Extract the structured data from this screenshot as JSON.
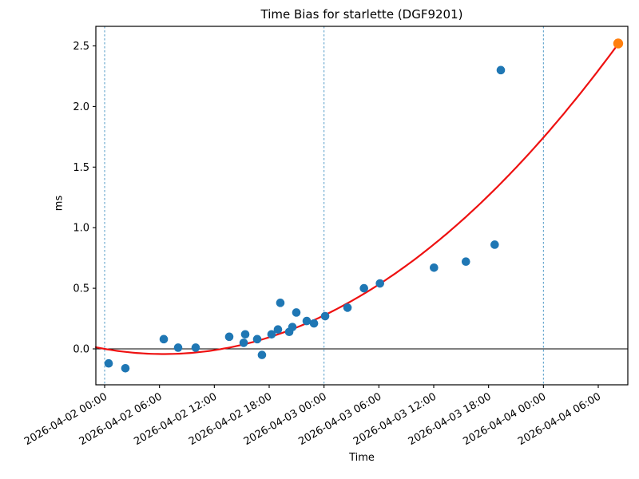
{
  "chart_data": {
    "type": "scatter",
    "title": "Time Bias for starlette (DGF9201)",
    "xlabel": "Time",
    "ylabel": "ms",
    "x_axis": {
      "epoch": "2026-04-02 00:00",
      "tick_hours": [
        0,
        6,
        12,
        18,
        24,
        30,
        36,
        42,
        48,
        54
      ],
      "tick_labels": [
        "2026-04-02 00:00",
        "2026-04-02 06:00",
        "2026-04-02 12:00",
        "2026-04-02 18:00",
        "2026-04-03 00:00",
        "2026-04-03 06:00",
        "2026-04-03 12:00",
        "2026-04-03 18:00",
        "2026-04-04 00:00",
        "2026-04-04 06:00"
      ],
      "range_hours": [
        -0.96,
        57.24
      ],
      "label_rotation_deg": 30
    },
    "y_axis": {
      "ticks": [
        "0.0",
        "0.5",
        "1.0",
        "1.5",
        "2.0",
        "2.5"
      ],
      "tick_values": [
        0.0,
        0.5,
        1.0,
        1.5,
        2.0,
        2.5
      ],
      "range": [
        -0.3,
        2.66
      ]
    },
    "grid": false,
    "legend": null,
    "series": [
      {
        "name": "time-bias-measurements",
        "marker": "circle",
        "color": "#1f77b4",
        "points": [
          {
            "time": "2026-04-02 00:26",
            "hours": 0.44,
            "ms": -0.12
          },
          {
            "time": "2026-04-02 02:16",
            "hours": 2.27,
            "ms": -0.16
          },
          {
            "time": "2026-04-02 06:28",
            "hours": 6.47,
            "ms": 0.08
          },
          {
            "time": "2026-04-02 08:02",
            "hours": 8.04,
            "ms": 0.01
          },
          {
            "time": "2026-04-02 09:58",
            "hours": 9.96,
            "ms": 0.01
          },
          {
            "time": "2026-04-02 13:38",
            "hours": 13.63,
            "ms": 0.1
          },
          {
            "time": "2026-04-02 15:13",
            "hours": 15.21,
            "ms": 0.05
          },
          {
            "time": "2026-04-02 15:23",
            "hours": 15.38,
            "ms": 0.12
          },
          {
            "time": "2026-04-02 16:41",
            "hours": 16.69,
            "ms": 0.08
          },
          {
            "time": "2026-04-02 17:13",
            "hours": 17.21,
            "ms": -0.05
          },
          {
            "time": "2026-04-02 18:16",
            "hours": 18.26,
            "ms": 0.12
          },
          {
            "time": "2026-04-02 18:58",
            "hours": 18.96,
            "ms": 0.16
          },
          {
            "time": "2026-04-02 19:13",
            "hours": 19.22,
            "ms": 0.38
          },
          {
            "time": "2026-04-02 20:11",
            "hours": 20.19,
            "ms": 0.14
          },
          {
            "time": "2026-04-02 20:32",
            "hours": 20.54,
            "ms": 0.18
          },
          {
            "time": "2026-04-02 20:58",
            "hours": 20.97,
            "ms": 0.3
          },
          {
            "time": "2026-04-02 22:07",
            "hours": 22.11,
            "ms": 0.23
          },
          {
            "time": "2026-04-02 22:54",
            "hours": 22.9,
            "ms": 0.21
          },
          {
            "time": "2026-04-03 00:07",
            "hours": 24.12,
            "ms": 0.27
          },
          {
            "time": "2026-04-03 02:34",
            "hours": 26.57,
            "ms": 0.34
          },
          {
            "time": "2026-04-03 04:22",
            "hours": 28.37,
            "ms": 0.5
          },
          {
            "time": "2026-04-03 06:07",
            "hours": 30.12,
            "ms": 0.54
          },
          {
            "time": "2026-04-03 12:02",
            "hours": 36.03,
            "ms": 0.67
          },
          {
            "time": "2026-04-03 15:31",
            "hours": 39.52,
            "ms": 0.72
          },
          {
            "time": "2026-04-03 18:40",
            "hours": 42.67,
            "ms": 0.86
          },
          {
            "time": "2026-04-03 19:20",
            "hours": 43.34,
            "ms": 2.3
          }
        ]
      },
      {
        "name": "predicted-point",
        "marker": "circle",
        "color": "#ff7f0e",
        "points": [
          {
            "time": "2026-04-04 08:11",
            "hours": 56.18,
            "ms": 2.52
          }
        ]
      }
    ],
    "fit_curve": {
      "name": "quadratic-fit",
      "color": "#ee1111",
      "poly_ms_vs_hours": {
        "a2": 0.001034,
        "a1": -0.0133,
        "a0": 0.0
      },
      "hours_range": [
        -0.96,
        56.18
      ]
    },
    "day_boundary_lines": {
      "color": "#4f9ac6",
      "style": "dashed",
      "hours": [
        0,
        24,
        48
      ],
      "labels": [
        "2026-04-02 00:00",
        "2026-04-03 00:00",
        "2026-04-04 00:00"
      ]
    },
    "zero_line": {
      "color": "#000000",
      "ms": 0.0
    }
  }
}
